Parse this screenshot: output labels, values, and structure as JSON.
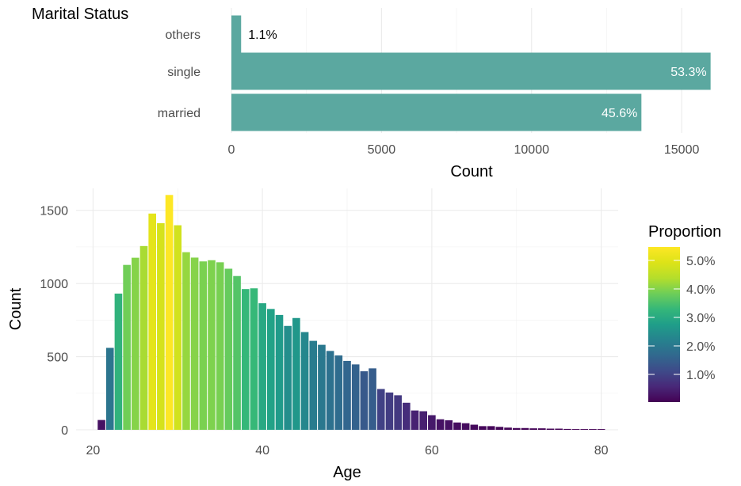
{
  "chart_data": [
    {
      "type": "bar",
      "orientation": "horizontal",
      "title": "Marital Status",
      "xlabel": "Count",
      "ylabel": "",
      "categories": [
        "others",
        "single",
        "married"
      ],
      "values": [
        323,
        15964,
        13659
      ],
      "labels": [
        "1.1%",
        "53.3%",
        "45.6%"
      ],
      "xlim": [
        0,
        16000
      ],
      "xticks": [
        "0",
        "5000",
        "10000",
        "15000"
      ],
      "bar_color": "#5ba8a0",
      "grid": true
    },
    {
      "type": "bar",
      "title": "",
      "xlabel": "Age",
      "ylabel": "Count",
      "legend_title": "Proportion",
      "legend_position": "right",
      "legend_ticks": [
        "5.0%",
        "4.0%",
        "3.0%",
        "2.0%",
        "1.0%"
      ],
      "x": [
        21,
        22,
        23,
        24,
        25,
        26,
        27,
        28,
        29,
        30,
        31,
        32,
        33,
        34,
        35,
        36,
        37,
        38,
        39,
        40,
        41,
        42,
        43,
        44,
        45,
        46,
        47,
        48,
        49,
        50,
        51,
        52,
        53,
        54,
        55,
        56,
        57,
        58,
        59,
        60,
        61,
        62,
        63,
        64,
        65,
        66,
        67,
        68,
        69,
        70,
        71,
        72,
        73,
        74,
        75,
        76,
        77,
        78,
        79,
        80
      ],
      "values": [
        67,
        560,
        931,
        1127,
        1176,
        1256,
        1478,
        1412,
        1605,
        1398,
        1214,
        1177,
        1151,
        1159,
        1145,
        1101,
        1051,
        962,
        967,
        865,
        826,
        785,
        710,
        764,
        668,
        608,
        581,
        539,
        508,
        471,
        447,
        400,
        420,
        279,
        255,
        236,
        185,
        132,
        127,
        100,
        72,
        65,
        50,
        45,
        35,
        25,
        25,
        20,
        15,
        12,
        12,
        10,
        10,
        8,
        8,
        6,
        5,
        5,
        5,
        5
      ],
      "xlim": [
        18,
        82
      ],
      "ylim": [
        0,
        1650
      ],
      "xticks": [
        "20",
        "40",
        "60",
        "80"
      ],
      "yticks": [
        "0",
        "500",
        "1000",
        "1500"
      ],
      "colorscale": "viridis",
      "grid": true
    }
  ]
}
